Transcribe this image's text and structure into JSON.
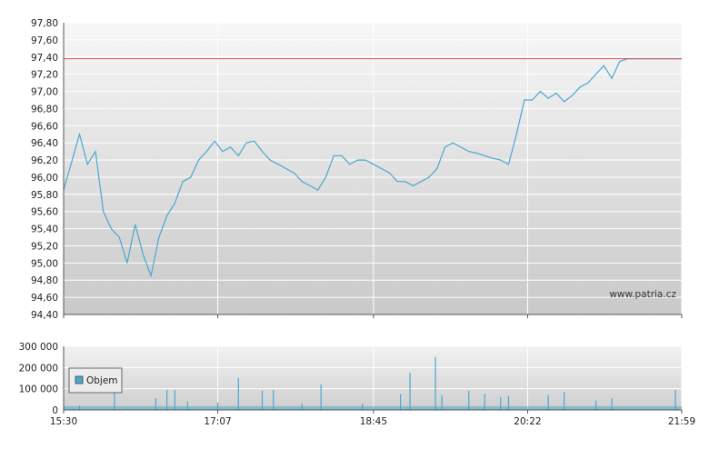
{
  "chart_data": [
    {
      "type": "line",
      "grid": true,
      "x_ticks": [
        "15:30",
        "17:07",
        "18:45",
        "20:22",
        "21:59"
      ],
      "ylim": [
        94.4,
        97.8
      ],
      "y_ticks": [
        "94,40",
        "94,60",
        "94,80",
        "95,00",
        "95,20",
        "95,40",
        "95,60",
        "95,80",
        "96,00",
        "96,20",
        "96,40",
        "96,60",
        "96,80",
        "97,00",
        "97,20",
        "97,40",
        "97,60",
        "97,80"
      ],
      "reference_line": 97.38,
      "watermark": "www.patria.cz",
      "series": [
        {
          "color": "#4aa8d0",
          "x": [
            "15:30",
            "15:40",
            "15:45",
            "15:50",
            "15:55",
            "16:00",
            "16:05",
            "16:10",
            "16:15",
            "16:20",
            "16:25",
            "16:30",
            "16:35",
            "16:40",
            "16:45",
            "16:50",
            "16:55",
            "17:00",
            "17:05",
            "17:10",
            "17:15",
            "17:20",
            "17:25",
            "17:30",
            "17:35",
            "17:40",
            "17:45",
            "17:50",
            "17:55",
            "18:00",
            "18:05",
            "18:10",
            "18:15",
            "18:20",
            "18:25",
            "18:30",
            "18:35",
            "18:40",
            "18:45",
            "18:50",
            "18:55",
            "19:00",
            "19:05",
            "19:10",
            "19:15",
            "19:20",
            "19:25",
            "19:30",
            "19:35",
            "19:40",
            "19:45",
            "19:50",
            "19:55",
            "20:00",
            "20:05",
            "20:10",
            "20:15",
            "20:20",
            "20:25",
            "20:30",
            "20:35",
            "20:40",
            "20:45",
            "20:50",
            "20:55",
            "21:00",
            "21:05",
            "21:10",
            "21:15",
            "21:20",
            "21:25",
            "21:30",
            "21:35",
            "21:40",
            "21:45",
            "21:50",
            "21:55",
            "21:59"
          ],
          "values": [
            95.85,
            96.5,
            96.15,
            96.3,
            95.6,
            95.4,
            95.3,
            95.0,
            95.45,
            95.1,
            94.85,
            95.3,
            95.55,
            95.7,
            95.95,
            96.0,
            96.2,
            96.3,
            96.42,
            96.3,
            96.35,
            96.25,
            96.4,
            96.42,
            96.3,
            96.2,
            96.15,
            96.1,
            96.05,
            95.95,
            95.9,
            95.85,
            96.0,
            96.25,
            96.25,
            96.15,
            96.2,
            96.2,
            96.15,
            96.1,
            96.05,
            95.95,
            95.95,
            95.9,
            95.95,
            96.0,
            96.1,
            96.35,
            96.4,
            96.35,
            96.3,
            96.28,
            96.25,
            96.22,
            96.2,
            96.15,
            96.5,
            96.9,
            96.9,
            97.0,
            96.92,
            96.98,
            96.88,
            96.95,
            97.05,
            97.1,
            97.2,
            97.3,
            97.15,
            97.35,
            97.38,
            97.38,
            97.38,
            97.38,
            97.38,
            97.38,
            97.38,
            97.38
          ]
        }
      ]
    },
    {
      "type": "bar",
      "grid": true,
      "x_ticks": [
        "15:30",
        "17:07",
        "18:45",
        "20:22",
        "21:59"
      ],
      "ylim": [
        0,
        300000
      ],
      "y_ticks": [
        "0",
        "100 000",
        "200 000",
        "300 000"
      ],
      "legend": {
        "placement": "left",
        "label": "Objem"
      },
      "series": [
        {
          "name": "Objem",
          "color": "#4aa8d0",
          "spikes": [
            {
              "x": "15:40",
              "v": 20000
            },
            {
              "x": "16:02",
              "v": 85000
            },
            {
              "x": "16:28",
              "v": 55000
            },
            {
              "x": "16:35",
              "v": 95000
            },
            {
              "x": "16:40",
              "v": 95000
            },
            {
              "x": "16:48",
              "v": 40000
            },
            {
              "x": "17:07",
              "v": 35000
            },
            {
              "x": "17:20",
              "v": 150000
            },
            {
              "x": "17:35",
              "v": 90000
            },
            {
              "x": "17:42",
              "v": 95000
            },
            {
              "x": "18:00",
              "v": 30000
            },
            {
              "x": "18:12",
              "v": 120000
            },
            {
              "x": "18:38",
              "v": 30000
            },
            {
              "x": "19:02",
              "v": 75000
            },
            {
              "x": "19:08",
              "v": 175000
            },
            {
              "x": "19:24",
              "v": 250000
            },
            {
              "x": "19:28",
              "v": 70000
            },
            {
              "x": "19:45",
              "v": 90000
            },
            {
              "x": "19:55",
              "v": 75000
            },
            {
              "x": "20:05",
              "v": 60000
            },
            {
              "x": "20:10",
              "v": 65000
            },
            {
              "x": "20:35",
              "v": 70000
            },
            {
              "x": "20:45",
              "v": 85000
            },
            {
              "x": "21:05",
              "v": 45000
            },
            {
              "x": "21:15",
              "v": 55000
            },
            {
              "x": "21:55",
              "v": 95000
            }
          ]
        }
      ]
    }
  ]
}
